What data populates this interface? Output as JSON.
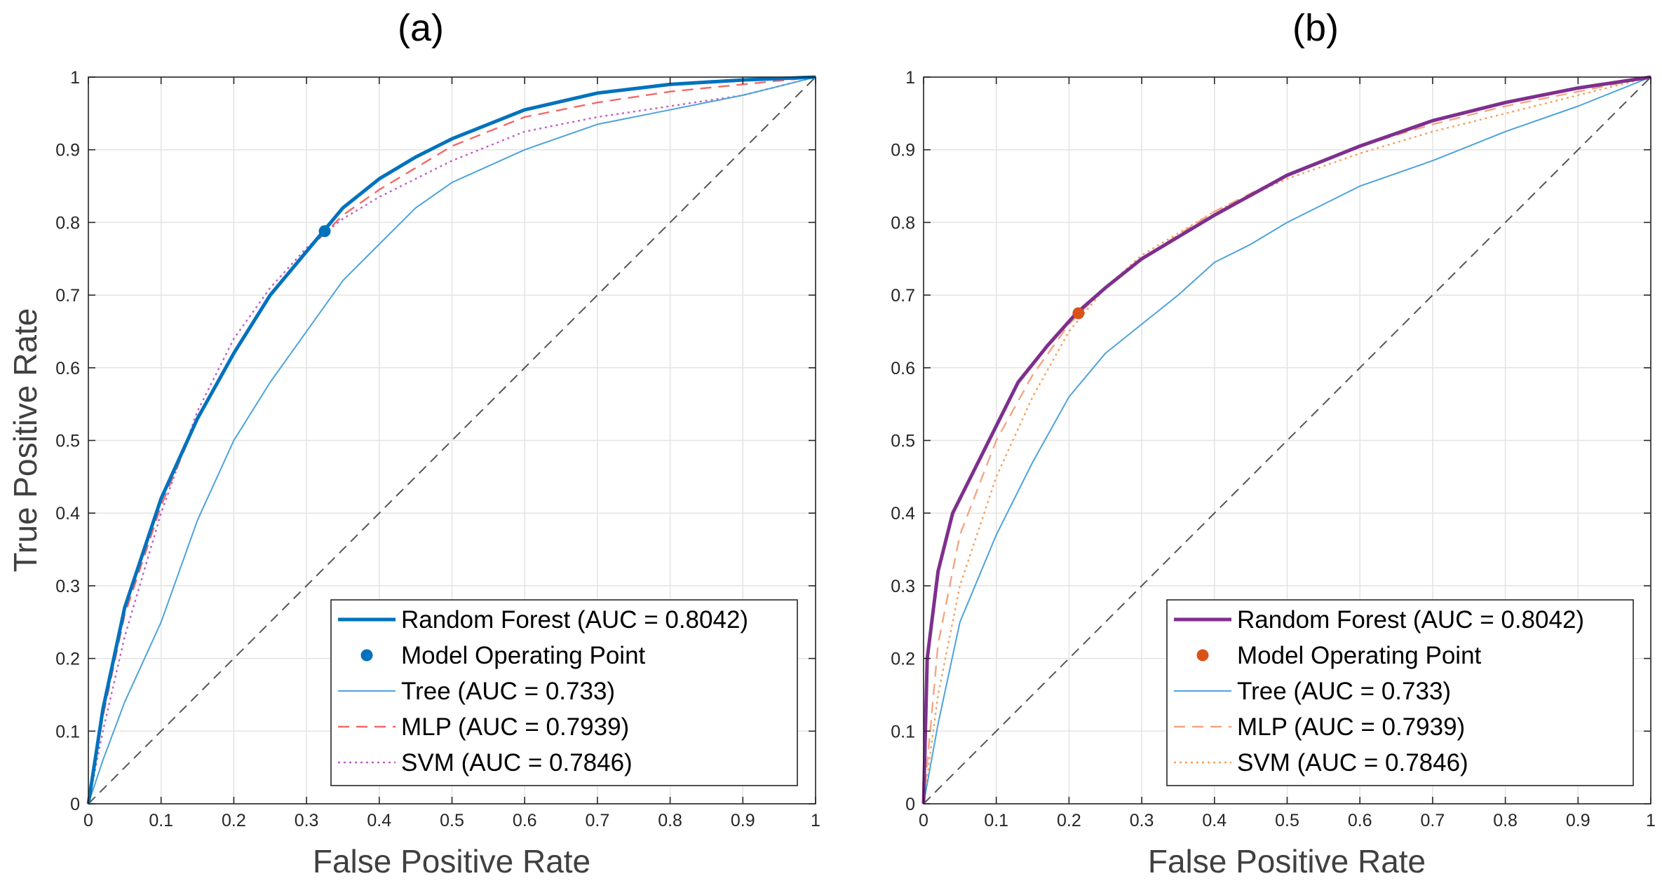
{
  "chart_data": [
    {
      "type": "line",
      "title": "(a)",
      "xlabel": "False Positive Rate",
      "ylabel": "True Positive Rate",
      "xlim": [
        0,
        1
      ],
      "ylim": [
        0,
        1
      ],
      "xticks": [
        "0",
        "0.1",
        "0.2",
        "0.3",
        "0.4",
        "0.5",
        "0.6",
        "0.7",
        "0.8",
        "0.9",
        "1"
      ],
      "yticks": [
        "0",
        "0.1",
        "0.2",
        "0.3",
        "0.4",
        "0.5",
        "0.6",
        "0.7",
        "0.8",
        "0.9",
        "1"
      ],
      "grid": true,
      "legend_position": "bottom-right",
      "diagonal": {
        "x": [
          0,
          1
        ],
        "y": [
          0,
          1
        ],
        "color": "#555555",
        "style": "dashed"
      },
      "series": [
        {
          "name": "Random Forest (AUC = 0.8042)",
          "color": "#0072BD",
          "style": "solid-thick",
          "x": [
            0,
            0.02,
            0.05,
            0.1,
            0.15,
            0.2,
            0.25,
            0.3,
            0.35,
            0.4,
            0.45,
            0.5,
            0.6,
            0.7,
            0.8,
            0.9,
            1.0
          ],
          "y": [
            0,
            0.13,
            0.27,
            0.42,
            0.53,
            0.62,
            0.7,
            0.76,
            0.82,
            0.86,
            0.89,
            0.915,
            0.955,
            0.978,
            0.99,
            0.996,
            1.0
          ]
        },
        {
          "name": "Model Operating Point",
          "color": "#0072BD",
          "style": "marker",
          "x": [
            0.325
          ],
          "y": [
            0.788
          ]
        },
        {
          "name": "Tree (AUC = 0.733)",
          "color": "#4DA3DB",
          "style": "solid-thin",
          "x": [
            0,
            0.02,
            0.05,
            0.1,
            0.15,
            0.2,
            0.25,
            0.3,
            0.35,
            0.4,
            0.45,
            0.5,
            0.6,
            0.7,
            0.8,
            0.9,
            1.0
          ],
          "y": [
            0,
            0.06,
            0.14,
            0.25,
            0.39,
            0.5,
            0.58,
            0.65,
            0.72,
            0.77,
            0.82,
            0.855,
            0.9,
            0.935,
            0.955,
            0.975,
            1.0
          ]
        },
        {
          "name": "MLP (AUC = 0.7939)",
          "color": "#F06A6A",
          "style": "dashed",
          "x": [
            0,
            0.02,
            0.05,
            0.1,
            0.15,
            0.2,
            0.25,
            0.3,
            0.35,
            0.4,
            0.45,
            0.5,
            0.6,
            0.7,
            0.8,
            0.9,
            1.0
          ],
          "y": [
            0,
            0.12,
            0.26,
            0.41,
            0.53,
            0.62,
            0.7,
            0.76,
            0.81,
            0.845,
            0.875,
            0.905,
            0.945,
            0.965,
            0.98,
            0.99,
            1.0
          ]
        },
        {
          "name": "SVM (AUC = 0.7846)",
          "color": "#C060C8",
          "style": "dotted",
          "x": [
            0,
            0.02,
            0.05,
            0.1,
            0.15,
            0.2,
            0.25,
            0.3,
            0.35,
            0.4,
            0.45,
            0.5,
            0.6,
            0.7,
            0.8,
            0.9,
            1.0
          ],
          "y": [
            0,
            0.1,
            0.23,
            0.4,
            0.54,
            0.64,
            0.71,
            0.765,
            0.805,
            0.835,
            0.86,
            0.885,
            0.925,
            0.945,
            0.96,
            0.975,
            1.0
          ]
        }
      ]
    },
    {
      "type": "line",
      "title": "(b)",
      "xlabel": "False Positive Rate",
      "ylabel": "",
      "xlim": [
        0,
        1
      ],
      "ylim": [
        0,
        1
      ],
      "xticks": [
        "0",
        "0.1",
        "0.2",
        "0.3",
        "0.4",
        "0.5",
        "0.6",
        "0.7",
        "0.8",
        "0.9",
        "1"
      ],
      "yticks": [
        "0",
        "0.1",
        "0.2",
        "0.3",
        "0.4",
        "0.5",
        "0.6",
        "0.7",
        "0.8",
        "0.9",
        "1"
      ],
      "grid": true,
      "legend_position": "bottom-right",
      "diagonal": {
        "x": [
          0,
          1
        ],
        "y": [
          0,
          1
        ],
        "color": "#555555",
        "style": "dashed"
      },
      "series": [
        {
          "name": "Random Forest (AUC = 0.8042)",
          "color": "#7E2F8E",
          "style": "solid-thick",
          "x": [
            0,
            0.005,
            0.02,
            0.04,
            0.08,
            0.13,
            0.17,
            0.21,
            0.25,
            0.3,
            0.4,
            0.5,
            0.6,
            0.7,
            0.8,
            0.9,
            1.0
          ],
          "y": [
            0,
            0.2,
            0.32,
            0.4,
            0.48,
            0.58,
            0.63,
            0.675,
            0.71,
            0.75,
            0.81,
            0.865,
            0.905,
            0.94,
            0.965,
            0.985,
            1.0
          ]
        },
        {
          "name": "Model Operating Point",
          "color": "#D95319",
          "style": "marker",
          "x": [
            0.213
          ],
          "y": [
            0.675
          ]
        },
        {
          "name": "Tree (AUC = 0.733)",
          "color": "#4DA3DB",
          "style": "solid-thin",
          "x": [
            0,
            0.02,
            0.05,
            0.1,
            0.15,
            0.2,
            0.25,
            0.3,
            0.35,
            0.4,
            0.45,
            0.5,
            0.6,
            0.7,
            0.8,
            0.9,
            1.0
          ],
          "y": [
            0,
            0.11,
            0.25,
            0.37,
            0.47,
            0.56,
            0.62,
            0.66,
            0.7,
            0.745,
            0.77,
            0.8,
            0.85,
            0.885,
            0.925,
            0.96,
            1.0
          ]
        },
        {
          "name": "MLP (AUC = 0.7939)",
          "color": "#F4A582",
          "style": "dashed",
          "x": [
            0,
            0.02,
            0.05,
            0.1,
            0.15,
            0.2,
            0.25,
            0.3,
            0.4,
            0.5,
            0.6,
            0.7,
            0.8,
            0.9,
            1.0
          ],
          "y": [
            0,
            0.22,
            0.37,
            0.5,
            0.59,
            0.66,
            0.71,
            0.75,
            0.815,
            0.865,
            0.905,
            0.935,
            0.96,
            0.98,
            1.0
          ]
        },
        {
          "name": "SVM (AUC = 0.7846)",
          "color": "#F6A05A",
          "style": "dotted",
          "x": [
            0,
            0.02,
            0.05,
            0.1,
            0.15,
            0.2,
            0.25,
            0.3,
            0.4,
            0.5,
            0.6,
            0.7,
            0.8,
            0.9,
            1.0
          ],
          "y": [
            0,
            0.15,
            0.3,
            0.45,
            0.56,
            0.65,
            0.71,
            0.755,
            0.815,
            0.86,
            0.895,
            0.925,
            0.95,
            0.975,
            1.0
          ]
        }
      ]
    }
  ]
}
